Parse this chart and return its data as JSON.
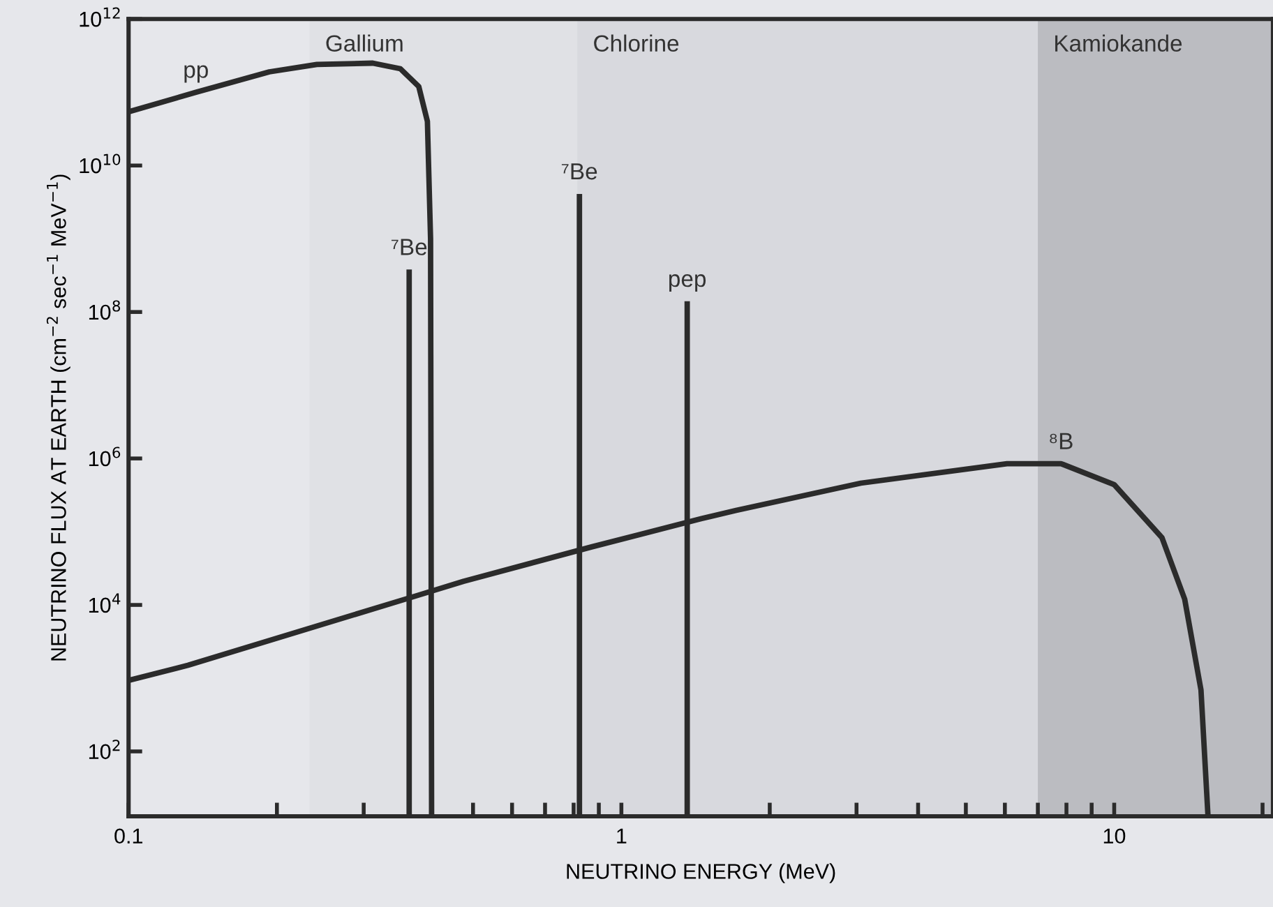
{
  "chart_data": {
    "type": "line",
    "xlabel": "NEUTRINO ENERGY (MeV)",
    "ylabel": "NEUTRINO FLUX AT EARTH (cm$^{−2}$ sec$^{−1}$ MeV$^{−1}$)",
    "log": "xy",
    "grid": false,
    "legend": false,
    "marker": "none",
    "line_style": "solid",
    "xlim": [
      0.1,
      21
    ],
    "ylim": [
      13,
      1000000000000.0
    ],
    "xticks": [
      {
        "value": 0.1,
        "label": "0.1"
      },
      {
        "value": 0.2,
        "label": null
      },
      {
        "value": 0.3,
        "label": null
      },
      {
        "value": 0.5,
        "label": null
      },
      {
        "value": 0.6,
        "label": null
      },
      {
        "value": 0.7,
        "label": null
      },
      {
        "value": 0.8,
        "label": null
      },
      {
        "value": 0.9,
        "label": null
      },
      {
        "value": 1,
        "label": "1"
      },
      {
        "value": 2,
        "label": null
      },
      {
        "value": 3,
        "label": null
      },
      {
        "value": 4,
        "label": null
      },
      {
        "value": 5,
        "label": null
      },
      {
        "value": 6,
        "label": null
      },
      {
        "value": 7,
        "label": null
      },
      {
        "value": 8,
        "label": null
      },
      {
        "value": 9,
        "label": null
      },
      {
        "value": 10,
        "label": "10"
      },
      {
        "value": 20,
        "label": null
      }
    ],
    "yticks": [
      {
        "value": 100,
        "label": "10$^{2}$"
      },
      {
        "value": 10000,
        "label": "10$^{4}$"
      },
      {
        "value": 1000000,
        "label": "10$^{6}$"
      },
      {
        "value": 100000000,
        "label": "10$^{8}$"
      },
      {
        "value": 10000000000,
        "label": "10$^{10}$"
      },
      {
        "value": 1000000000000,
        "label": "10$^{12}$"
      }
    ],
    "bands": [
      {
        "axis": "x",
        "from": 0.233,
        "to": 21,
        "label": "Gallium",
        "color": "#dcdde1"
      },
      {
        "axis": "x",
        "from": 0.814,
        "to": 21,
        "label": "Chlorine",
        "color": "#d2d3d8"
      },
      {
        "axis": "x",
        "from": 7,
        "to": 21,
        "label": "Kamiokande",
        "color": "#a9a9ae"
      }
    ],
    "series": [
      {
        "color": "#2b2b2b",
        "x": [
          0.1,
          0.137,
          0.193,
          0.241,
          0.313,
          0.356,
          0.388,
          0.404,
          0.41,
          0.412
        ],
        "values": [
          54000000000,
          100000000000,
          190000000000,
          240000000000,
          250000000000,
          210000000000,
          120000000000,
          40000000000,
          1000000000,
          13
        ]
      },
      {
        "color": "#2b2b2b",
        "x": [
          0.371,
          0.371
        ],
        "values": [
          13,
          380000000
        ]
      },
      {
        "color": "#2b2b2b",
        "x": [
          0.822,
          0.822
        ],
        "values": [
          13,
          4100000000
        ]
      },
      {
        "color": "#2b2b2b",
        "x": [
          1.36,
          1.36
        ],
        "values": [
          13,
          140000000
        ]
      },
      {
        "color": "#2b2b2b",
        "x": [
          0.1,
          0.132,
          0.386,
          0.478,
          0.87,
          1.45,
          1.71,
          3.06,
          6.06,
          7.8,
          10,
          12.5,
          13.9,
          15.0,
          15.5
        ],
        "values": [
          930,
          1500,
          13500,
          21000,
          62000,
          150000,
          196000,
          460000,
          850000,
          850000,
          440000,
          83000,
          12000,
          690,
          13
        ]
      }
    ],
    "annotations": [
      {
        "text": "pp",
        "x": 0.137,
        "y": 100000000000
      },
      {
        "text": "⁷Be",
        "x": 0.371,
        "y": 380000000
      },
      {
        "text": "⁷Be",
        "x": 0.822,
        "y": 4100000000
      },
      {
        "text": "pep",
        "x": 1.36,
        "y": 140000000
      },
      {
        "text": "⁸B",
        "x": 7.8,
        "y": 850000
      }
    ]
  }
}
